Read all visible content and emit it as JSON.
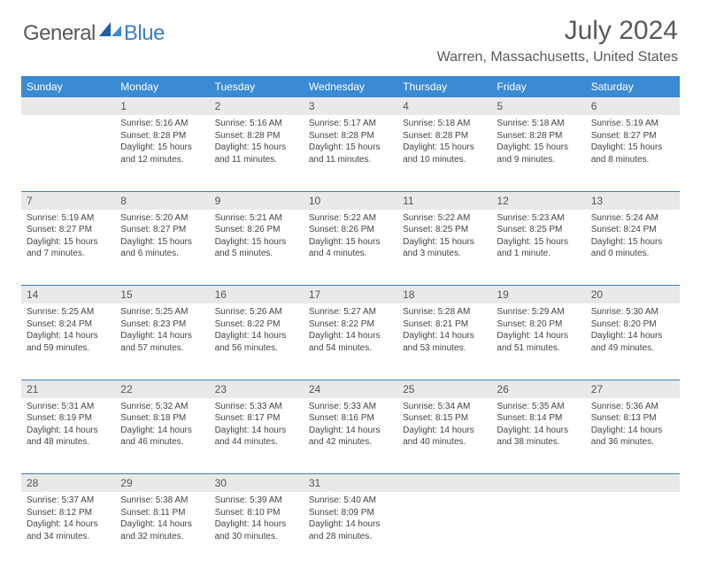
{
  "brand": {
    "name1": "General",
    "name2": "Blue"
  },
  "title": "July 2024",
  "location": "Warren, Massachusetts, United States",
  "colors": {
    "header_bg": "#3b8bd4",
    "header_text": "#ffffff",
    "daynum_bg": "#e9e9e9",
    "rule": "#3b7fc4",
    "text": "#444444",
    "brand_gray": "#5a5a5a",
    "brand_blue": "#3b7fc4"
  },
  "typography": {
    "title_fontsize": 30,
    "location_fontsize": 16,
    "header_fontsize": 12,
    "daynum_fontsize": 12,
    "cell_fontsize": 10
  },
  "weekdays": [
    "Sunday",
    "Monday",
    "Tuesday",
    "Wednesday",
    "Thursday",
    "Friday",
    "Saturday"
  ],
  "weeks": [
    {
      "nums": [
        "",
        "1",
        "2",
        "3",
        "4",
        "5",
        "6"
      ],
      "cells": [
        {
          "lines": []
        },
        {
          "lines": [
            "Sunrise: 5:16 AM",
            "Sunset: 8:28 PM",
            "Daylight: 15 hours",
            "and 12 minutes."
          ]
        },
        {
          "lines": [
            "Sunrise: 5:16 AM",
            "Sunset: 8:28 PM",
            "Daylight: 15 hours",
            "and 11 minutes."
          ]
        },
        {
          "lines": [
            "Sunrise: 5:17 AM",
            "Sunset: 8:28 PM",
            "Daylight: 15 hours",
            "and 11 minutes."
          ]
        },
        {
          "lines": [
            "Sunrise: 5:18 AM",
            "Sunset: 8:28 PM",
            "Daylight: 15 hours",
            "and 10 minutes."
          ]
        },
        {
          "lines": [
            "Sunrise: 5:18 AM",
            "Sunset: 8:28 PM",
            "Daylight: 15 hours",
            "and 9 minutes."
          ]
        },
        {
          "lines": [
            "Sunrise: 5:19 AM",
            "Sunset: 8:27 PM",
            "Daylight: 15 hours",
            "and 8 minutes."
          ]
        }
      ]
    },
    {
      "nums": [
        "7",
        "8",
        "9",
        "10",
        "11",
        "12",
        "13"
      ],
      "cells": [
        {
          "lines": [
            "Sunrise: 5:19 AM",
            "Sunset: 8:27 PM",
            "Daylight: 15 hours",
            "and 7 minutes."
          ]
        },
        {
          "lines": [
            "Sunrise: 5:20 AM",
            "Sunset: 8:27 PM",
            "Daylight: 15 hours",
            "and 6 minutes."
          ]
        },
        {
          "lines": [
            "Sunrise: 5:21 AM",
            "Sunset: 8:26 PM",
            "Daylight: 15 hours",
            "and 5 minutes."
          ]
        },
        {
          "lines": [
            "Sunrise: 5:22 AM",
            "Sunset: 8:26 PM",
            "Daylight: 15 hours",
            "and 4 minutes."
          ]
        },
        {
          "lines": [
            "Sunrise: 5:22 AM",
            "Sunset: 8:25 PM",
            "Daylight: 15 hours",
            "and 3 minutes."
          ]
        },
        {
          "lines": [
            "Sunrise: 5:23 AM",
            "Sunset: 8:25 PM",
            "Daylight: 15 hours",
            "and 1 minute."
          ]
        },
        {
          "lines": [
            "Sunrise: 5:24 AM",
            "Sunset: 8:24 PM",
            "Daylight: 15 hours",
            "and 0 minutes."
          ]
        }
      ]
    },
    {
      "nums": [
        "14",
        "15",
        "16",
        "17",
        "18",
        "19",
        "20"
      ],
      "cells": [
        {
          "lines": [
            "Sunrise: 5:25 AM",
            "Sunset: 8:24 PM",
            "Daylight: 14 hours",
            "and 59 minutes."
          ]
        },
        {
          "lines": [
            "Sunrise: 5:25 AM",
            "Sunset: 8:23 PM",
            "Daylight: 14 hours",
            "and 57 minutes."
          ]
        },
        {
          "lines": [
            "Sunrise: 5:26 AM",
            "Sunset: 8:22 PM",
            "Daylight: 14 hours",
            "and 56 minutes."
          ]
        },
        {
          "lines": [
            "Sunrise: 5:27 AM",
            "Sunset: 8:22 PM",
            "Daylight: 14 hours",
            "and 54 minutes."
          ]
        },
        {
          "lines": [
            "Sunrise: 5:28 AM",
            "Sunset: 8:21 PM",
            "Daylight: 14 hours",
            "and 53 minutes."
          ]
        },
        {
          "lines": [
            "Sunrise: 5:29 AM",
            "Sunset: 8:20 PM",
            "Daylight: 14 hours",
            "and 51 minutes."
          ]
        },
        {
          "lines": [
            "Sunrise: 5:30 AM",
            "Sunset: 8:20 PM",
            "Daylight: 14 hours",
            "and 49 minutes."
          ]
        }
      ]
    },
    {
      "nums": [
        "21",
        "22",
        "23",
        "24",
        "25",
        "26",
        "27"
      ],
      "cells": [
        {
          "lines": [
            "Sunrise: 5:31 AM",
            "Sunset: 8:19 PM",
            "Daylight: 14 hours",
            "and 48 minutes."
          ]
        },
        {
          "lines": [
            "Sunrise: 5:32 AM",
            "Sunset: 8:18 PM",
            "Daylight: 14 hours",
            "and 46 minutes."
          ]
        },
        {
          "lines": [
            "Sunrise: 5:33 AM",
            "Sunset: 8:17 PM",
            "Daylight: 14 hours",
            "and 44 minutes."
          ]
        },
        {
          "lines": [
            "Sunrise: 5:33 AM",
            "Sunset: 8:16 PM",
            "Daylight: 14 hours",
            "and 42 minutes."
          ]
        },
        {
          "lines": [
            "Sunrise: 5:34 AM",
            "Sunset: 8:15 PM",
            "Daylight: 14 hours",
            "and 40 minutes."
          ]
        },
        {
          "lines": [
            "Sunrise: 5:35 AM",
            "Sunset: 8:14 PM",
            "Daylight: 14 hours",
            "and 38 minutes."
          ]
        },
        {
          "lines": [
            "Sunrise: 5:36 AM",
            "Sunset: 8:13 PM",
            "Daylight: 14 hours",
            "and 36 minutes."
          ]
        }
      ]
    },
    {
      "nums": [
        "28",
        "29",
        "30",
        "31",
        "",
        "",
        ""
      ],
      "cells": [
        {
          "lines": [
            "Sunrise: 5:37 AM",
            "Sunset: 8:12 PM",
            "Daylight: 14 hours",
            "and 34 minutes."
          ]
        },
        {
          "lines": [
            "Sunrise: 5:38 AM",
            "Sunset: 8:11 PM",
            "Daylight: 14 hours",
            "and 32 minutes."
          ]
        },
        {
          "lines": [
            "Sunrise: 5:39 AM",
            "Sunset: 8:10 PM",
            "Daylight: 14 hours",
            "and 30 minutes."
          ]
        },
        {
          "lines": [
            "Sunrise: 5:40 AM",
            "Sunset: 8:09 PM",
            "Daylight: 14 hours",
            "and 28 minutes."
          ]
        },
        {
          "lines": []
        },
        {
          "lines": []
        },
        {
          "lines": []
        }
      ]
    }
  ]
}
